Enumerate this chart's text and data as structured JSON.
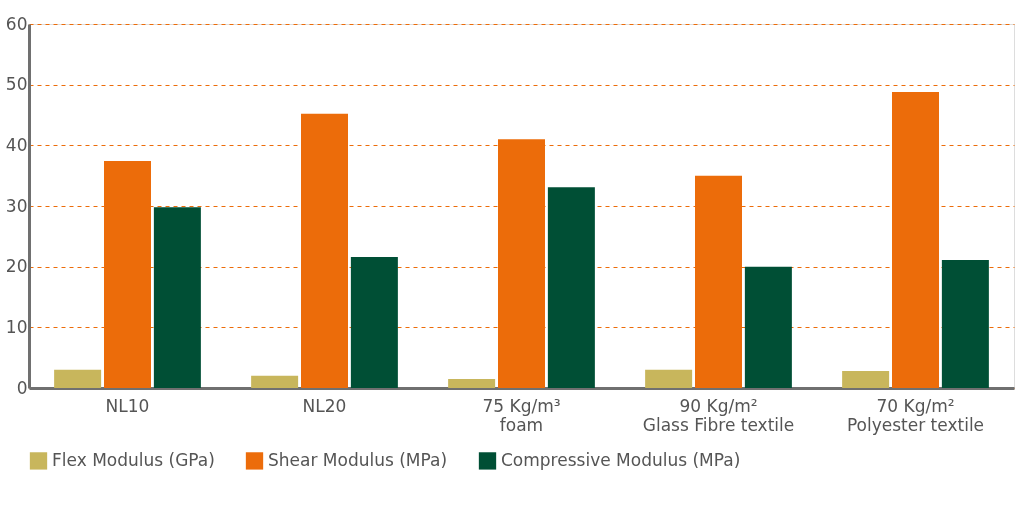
{
  "chart_data": {
    "type": "bar",
    "categories": [
      "NL10",
      "NL20",
      "75 Kg/m³\nfoam",
      "90 Kg/m²\nGlass Fibre textile",
      "70 Kg/m²\nPolyester textile"
    ],
    "series": [
      {
        "name": "Flex Modulus (GPa)",
        "color": "#c8b65c",
        "values": [
          3.0,
          2.0,
          1.5,
          3.0,
          2.8
        ]
      },
      {
        "name": "Shear Modulus (MPa)",
        "color": "#ec6c0a",
        "values": [
          37.4,
          45.2,
          41.0,
          35.0,
          48.8
        ]
      },
      {
        "name": "Compressive Modulus (MPa)",
        "color": "#004f35",
        "values": [
          29.8,
          21.6,
          33.1,
          20.0,
          21.1
        ]
      }
    ],
    "ylim": [
      0,
      60
    ],
    "yticks": [
      0,
      10,
      20,
      30,
      40,
      50,
      60
    ],
    "grid": "y",
    "legend": "bottom"
  }
}
